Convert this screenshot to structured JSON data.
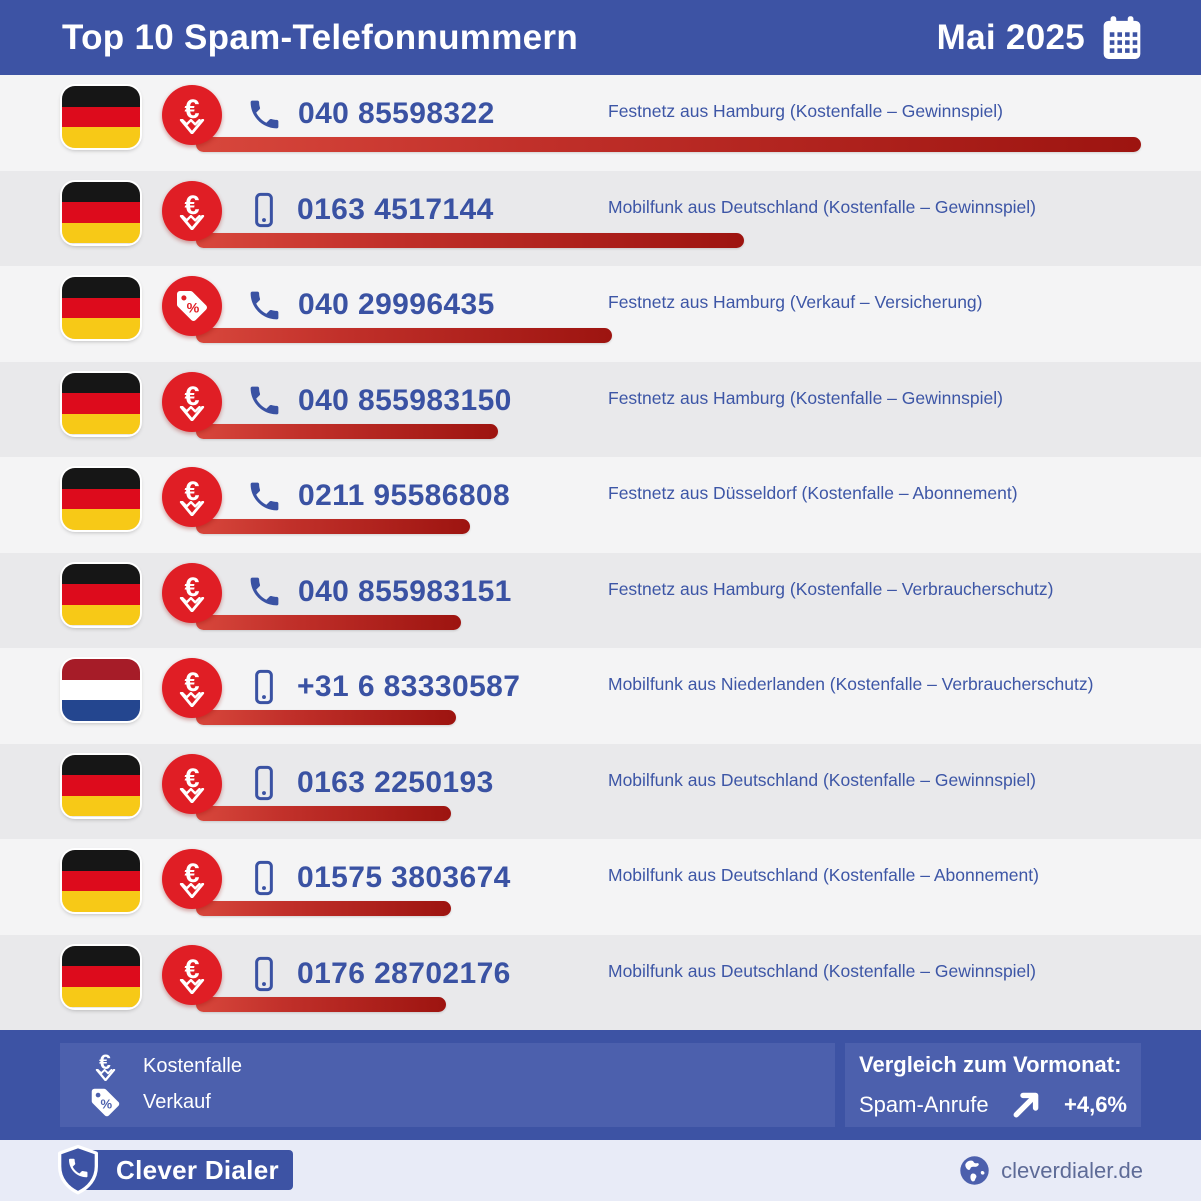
{
  "header": {
    "title": "Top 10 Spam-Telefonnummern",
    "period": "Mai 2025"
  },
  "rows": [
    {
      "rank": 1,
      "flag": "de",
      "category": "kostenfalle",
      "phone_type": "landline",
      "number": "040 85598322",
      "description": "Festnetz aus Hamburg (Kostenfalle – Gewinnspiel)",
      "bar_percent": 100
    },
    {
      "rank": 2,
      "flag": "de",
      "category": "kostenfalle",
      "phone_type": "mobile",
      "number": "0163 4517144",
      "description": "Mobilfunk aus Deutschland (Kostenfalle – Gewinnspiel)",
      "bar_percent": 58
    },
    {
      "rank": 3,
      "flag": "de",
      "category": "verkauf",
      "phone_type": "landline",
      "number": "040 29996435",
      "description": "Festnetz aus Hamburg (Verkauf – Versicherung)",
      "bar_percent": 44
    },
    {
      "rank": 4,
      "flag": "de",
      "category": "kostenfalle",
      "phone_type": "landline",
      "number": "040 855983150",
      "description": "Festnetz aus Hamburg (Kostenfalle – Gewinnspiel)",
      "bar_percent": 32
    },
    {
      "rank": 5,
      "flag": "de",
      "category": "kostenfalle",
      "phone_type": "landline",
      "number": "0211 95586808",
      "description": "Festnetz aus Düsseldorf (Kostenfalle – Abonnement)",
      "bar_percent": 29
    },
    {
      "rank": 6,
      "flag": "de",
      "category": "kostenfalle",
      "phone_type": "landline",
      "number": "040 855983151",
      "description": "Festnetz aus Hamburg (Kostenfalle – Verbraucherschutz)",
      "bar_percent": 28
    },
    {
      "rank": 7,
      "flag": "nl",
      "category": "kostenfalle",
      "phone_type": "mobile",
      "number": "+31 6 83330587",
      "description": "Mobilfunk aus Niederlanden (Kostenfalle – Verbraucherschutz)",
      "bar_percent": 27.5
    },
    {
      "rank": 8,
      "flag": "de",
      "category": "kostenfalle",
      "phone_type": "mobile",
      "number": "0163 2250193",
      "description": "Mobilfunk aus Deutschland (Kostenfalle – Gewinnspiel)",
      "bar_percent": 27
    },
    {
      "rank": 9,
      "flag": "de",
      "category": "kostenfalle",
      "phone_type": "mobile",
      "number": "01575 3803674",
      "description": "Mobilfunk aus Deutschland (Kostenfalle – Abonnement)",
      "bar_percent": 27
    },
    {
      "rank": 10,
      "flag": "de",
      "category": "kostenfalle",
      "phone_type": "mobile",
      "number": "0176 28702176",
      "description": "Mobilfunk aus Deutschland (Kostenfalle – Gewinnspiel)",
      "bar_percent": 26.5
    }
  ],
  "legend": {
    "items": [
      {
        "icon": "euro-trap-icon",
        "label": "Kostenfalle"
      },
      {
        "icon": "price-tag-icon",
        "label": "Verkauf"
      }
    ]
  },
  "comparison": {
    "title": "Vergleich zum Vormonat:",
    "label": "Spam-Anrufe",
    "trend_icon": "arrow-up-right-icon",
    "value": "+4,6%"
  },
  "footer": {
    "brand": "Clever Dialer",
    "website": "cleverdialer.de"
  },
  "colors": {
    "header_blue": "#3d53a4",
    "panel_blue": "#4c60ad",
    "badge_red": "#e01e25",
    "bar_gradient": [
      "#d8473c",
      "#9d1410"
    ],
    "row_light": "#f4f4f5",
    "row_dark": "#e9e9eb",
    "number_blue": "#3a52a3",
    "bottom_bar": "#e8ebf7",
    "flag_de": [
      "#161616",
      "#dd0b1c",
      "#f7c917"
    ],
    "flag_nl": [
      "#a61c28",
      "#ffffff",
      "#24468f"
    ]
  },
  "chart_data": {
    "type": "bar",
    "orientation": "horizontal",
    "title": "Top 10 Spam-Telefonnummern",
    "subtitle": "Mai 2025",
    "categories": [
      "040 85598322",
      "0163 4517144",
      "040 29996435",
      "040 855983150",
      "0211 95586808",
      "040 855983151",
      "+31 6 83330587",
      "0163 2250193",
      "01575 3803674",
      "0176 28702176"
    ],
    "values": [
      100,
      58,
      44,
      32,
      29,
      28,
      27.5,
      27,
      27,
      26.5
    ],
    "value_note": "relative spam-call volume, % of rank-1 bar length (estimated from bars, no numeric axis shown)",
    "annotations": [
      "Festnetz aus Hamburg (Kostenfalle – Gewinnspiel)",
      "Mobilfunk aus Deutschland (Kostenfalle – Gewinnspiel)",
      "Festnetz aus Hamburg (Verkauf – Versicherung)",
      "Festnetz aus Hamburg (Kostenfalle – Gewinnspiel)",
      "Festnetz aus Düsseldorf (Kostenfalle – Abonnement)",
      "Festnetz aus Hamburg (Kostenfalle – Verbraucherschutz)",
      "Mobilfunk aus Niederlanden (Kostenfalle – Verbraucherschutz)",
      "Mobilfunk aus Deutschland (Kostenfalle – Gewinnspiel)",
      "Mobilfunk aus Deutschland (Kostenfalle – Abonnement)",
      "Mobilfunk aus Deutschland (Kostenfalle – Gewinnspiel)"
    ],
    "legend_position": "bottom-left",
    "grid": false,
    "comparison": {
      "label": "Spam-Anrufe",
      "change_vs_previous_month": "+4,6%"
    }
  }
}
